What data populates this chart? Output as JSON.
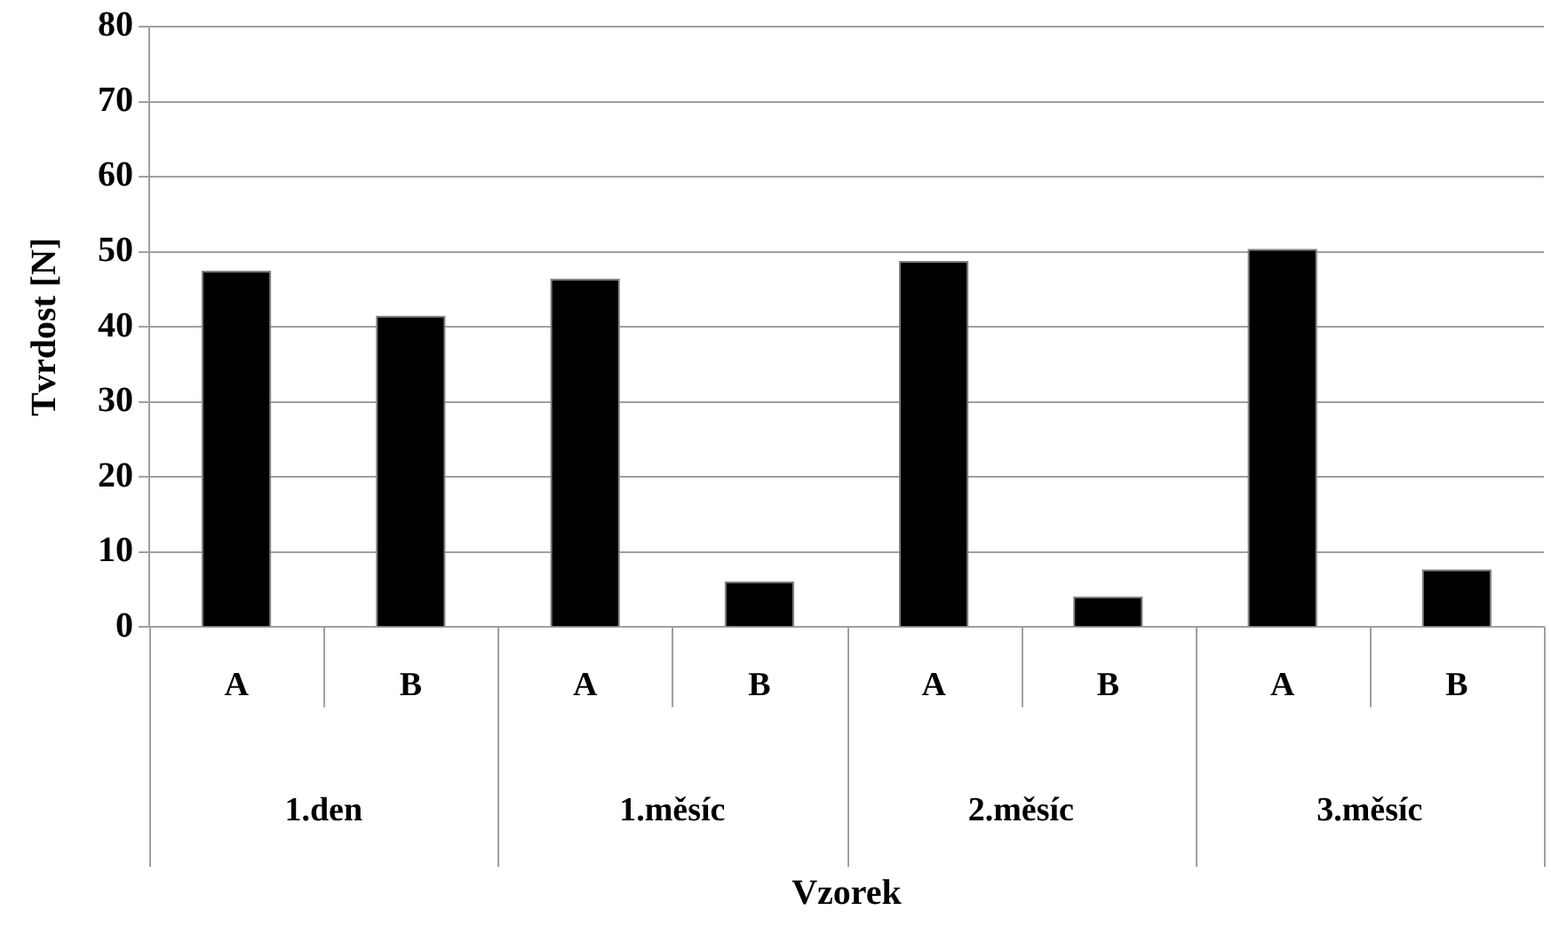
{
  "chart_data": {
    "type": "bar",
    "xlabel": "Vzorek",
    "ylabel": "Tvrdost [N]",
    "categories": [
      "A",
      "B",
      "A",
      "B",
      "A",
      "B",
      "A",
      "B"
    ],
    "values": [
      47.5,
      41.5,
      46.4,
      6.1,
      48.8,
      4.1,
      50.4,
      7.7
    ],
    "color": "#000000",
    "annotations": [
      "1.den",
      "1.měsíc",
      "2.měsíc",
      "3.měsíc"
    ],
    "ylim": [
      0,
      80
    ],
    "yticks": [
      0,
      10,
      20,
      30,
      40,
      50,
      60,
      70,
      80
    ],
    "grid": "y",
    "legend": false
  }
}
